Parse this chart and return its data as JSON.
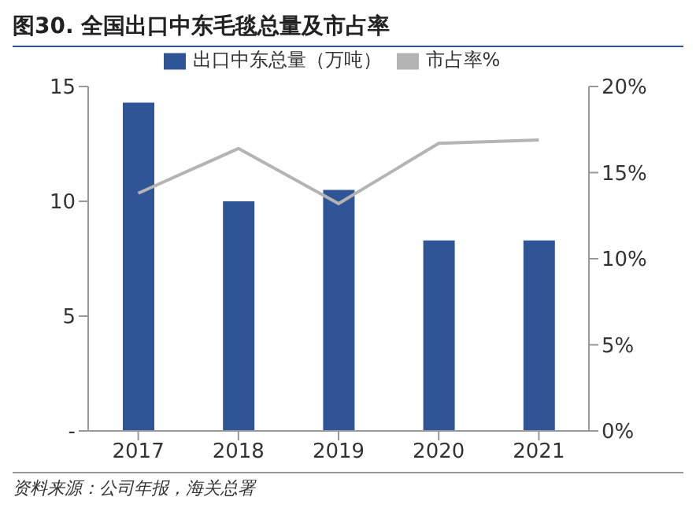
{
  "chart_data": {
    "type": "bar",
    "title": "图30. 全国出口中东毛毯总量及市占率",
    "categories": [
      "2017",
      "2018",
      "2019",
      "2020",
      "2021"
    ],
    "series": [
      {
        "name": "出口中东总量（万吨）",
        "color": "#2f5597",
        "values": [
          14.3,
          10,
          10.5,
          8.3,
          8.3
        ]
      },
      {
        "name": "市占率%",
        "type": "line",
        "axis": "y2",
        "color": "#b4b4b4",
        "values": [
          13.8,
          16.4,
          13.2,
          16.7,
          16.9
        ]
      }
    ],
    "ylim": [
      0,
      15
    ],
    "yticks": [
      {
        "value": 0,
        "label": "-"
      },
      5,
      10,
      15
    ],
    "y2lim": [
      0,
      20
    ],
    "y2ticks": [
      {
        "value": 0,
        "label": "0%"
      },
      {
        "value": 5,
        "label": "5%"
      },
      {
        "value": 10,
        "label": "10%"
      },
      {
        "value": 15,
        "label": "15%"
      },
      {
        "value": 20,
        "label": "20%"
      }
    ],
    "legend": "top",
    "grid": false,
    "marker": "none",
    "line_style": "solid",
    "annotations": [
      "资料来源：公司年报，海关总署"
    ]
  }
}
